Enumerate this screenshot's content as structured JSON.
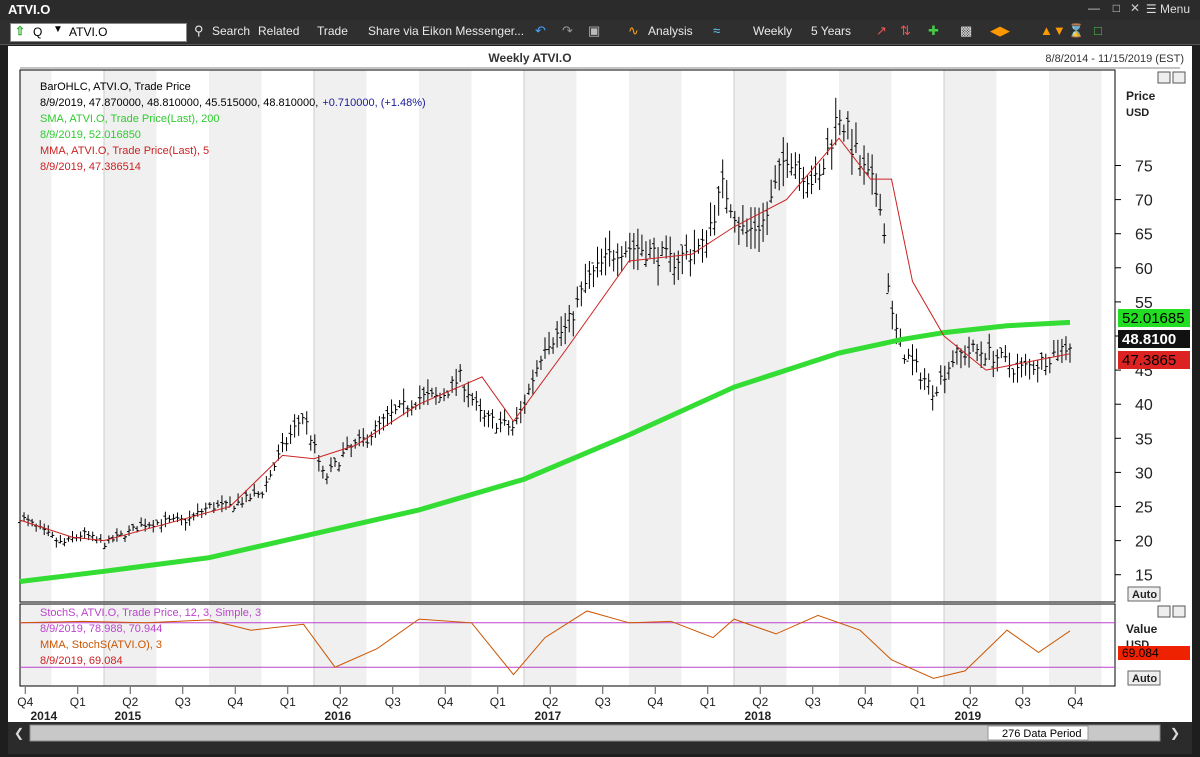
{
  "window": {
    "title": "ATVI.O",
    "menu_label": "Menu"
  },
  "toolbar": {
    "ric_value": "ATVI.O",
    "q_label": "Q",
    "search": "Search",
    "related": "Related",
    "trade": "Trade",
    "share": "Share via Eikon Messenger...",
    "analysis": "Analysis",
    "interval": "Weekly",
    "range": "5 Years"
  },
  "chart": {
    "header_title": "Weekly ATVI.O",
    "date_range": "8/8/2014 - 11/15/2019 (EST)",
    "legend": {
      "ohlc_name": "BarOHLC, ATVI.O, Trade Price",
      "ohlc_values": "8/9/2019, 47.870000, 48.810000, 45.515000, 48.810000,",
      "ohlc_change": "+0.710000, (+1.48%)",
      "sma_name": "SMA, ATVI.O, Trade Price(Last),  200",
      "sma_value": "8/9/2019, 52.016850",
      "mma_name": "MMA, ATVI.O, Trade Price(Last),  5",
      "mma_value": "8/9/2019, 47.386514"
    },
    "price_axis_title": "Price",
    "price_axis_unit": "USD",
    "auto_label": "Auto",
    "last_labels": {
      "sma": "52.01685",
      "close": "48.8100",
      "mma": "47.3865"
    },
    "stoch_legend": {
      "name": "StochS, ATVI.O, Trade Price,  12, 3, Simple, 3",
      "values": "8/9/2019, 78.988, 70.944",
      "mma_name": "MMA, StochS(ATVI.O),  3",
      "mma_value": "8/9/2019, 69.084"
    },
    "stoch_axis_title": "Value",
    "stoch_axis_unit": "USD",
    "stoch_last": "69.084",
    "data_period": "276 Data Period",
    "colors": {
      "sma": "#33dd33",
      "mma": "#cc2222",
      "stoch": "#cc5500",
      "stoch_band": "#bb44cc",
      "bars": "#000000"
    }
  },
  "chart_data": [
    {
      "type": "line",
      "title": "Weekly ATVI.O",
      "ylabel": "Price USD",
      "ylim": [
        11,
        89
      ],
      "x_ticks": [
        "Q4",
        "Q1",
        "Q2",
        "Q3",
        "Q4",
        "Q1",
        "Q2",
        "Q3",
        "Q4",
        "Q1",
        "Q2",
        "Q3",
        "Q4",
        "Q1",
        "Q2",
        "Q3",
        "Q4",
        "Q1",
        "Q2",
        "Q3",
        "Q4"
      ],
      "x_years": [
        "2014",
        "2015",
        "2016",
        "2017",
        "2018",
        "2019"
      ],
      "y_ticks": [
        15,
        20,
        25,
        30,
        35,
        40,
        45,
        50,
        55,
        60,
        65,
        70,
        75
      ],
      "series": [
        {
          "name": "BarOHLC, ATVI.O, Trade Price",
          "x": [
            2014.6,
            2014.8,
            2014.9,
            2015.0,
            2015.2,
            2015.4,
            2015.5,
            2015.6,
            2015.75,
            2015.85,
            2015.95,
            2016.05,
            2016.15,
            2016.25,
            2016.35,
            2016.5,
            2016.6,
            2016.7,
            2016.8,
            2016.95,
            2017.0,
            2017.1,
            2017.2,
            2017.3,
            2017.45,
            2017.55,
            2017.7,
            2017.85,
            2017.95,
            2018.05,
            2018.15,
            2018.25,
            2018.4,
            2018.5,
            2018.6,
            2018.7,
            2018.75,
            2018.8,
            2018.85,
            2018.9,
            2018.95,
            2019.05,
            2019.15,
            2019.25,
            2019.35,
            2019.45,
            2019.5,
            2019.6
          ],
          "close": [
            23.5,
            19.5,
            21,
            19.5,
            22.5,
            23,
            25,
            25,
            27,
            33.5,
            38.5,
            29,
            33,
            35,
            38,
            41,
            41,
            44,
            38,
            36.5,
            40,
            49,
            51,
            58,
            63,
            63,
            61,
            63,
            72,
            65,
            67,
            77,
            72,
            83,
            75,
            70,
            53,
            48,
            46,
            44,
            42,
            47,
            48,
            47,
            45,
            46,
            47,
            48.8
          ]
        },
        {
          "name": "SMA, ATVI.O, Trade Price(Last),  200",
          "x": [
            2014.6,
            2015.0,
            2015.5,
            2016.0,
            2016.5,
            2017.0,
            2017.5,
            2018.0,
            2018.5,
            2018.8,
            2019.0,
            2019.3,
            2019.6
          ],
          "values": [
            14,
            15.5,
            17.5,
            21,
            24.5,
            29,
            35.5,
            42.5,
            47.5,
            49.5,
            50.5,
            51.5,
            52.0
          ]
        },
        {
          "name": "MMA, ATVI.O, Trade Price(Last),  5",
          "x": [
            2014.6,
            2014.85,
            2015.0,
            2015.3,
            2015.6,
            2015.85,
            2016.0,
            2016.2,
            2016.5,
            2016.8,
            2016.95,
            2017.2,
            2017.5,
            2017.8,
            2018.0,
            2018.25,
            2018.5,
            2018.65,
            2018.75,
            2018.85,
            2019.0,
            2019.2,
            2019.6
          ],
          "values": [
            23,
            20.5,
            20,
            22.5,
            25,
            32.5,
            32,
            34,
            40,
            44,
            37.5,
            48,
            61,
            62,
            66,
            70,
            79,
            73,
            73,
            58,
            50,
            45,
            47.4
          ]
        }
      ]
    },
    {
      "type": "line",
      "title": "StochS, ATVI.O, Trade Price,  12, 3, Simple, 3",
      "ylabel": "Value USD",
      "ylim": [
        0,
        100
      ],
      "series": [
        {
          "name": "MMA, StochS(ATVI.O),  3",
          "x": [
            2014.6,
            2014.9,
            2015.2,
            2015.5,
            2015.7,
            2015.95,
            2016.1,
            2016.3,
            2016.5,
            2016.75,
            2016.95,
            2017.1,
            2017.3,
            2017.5,
            2017.7,
            2017.9,
            2018.0,
            2018.2,
            2018.4,
            2018.6,
            2018.75,
            2018.95,
            2019.1,
            2019.3,
            2019.45,
            2019.6
          ],
          "values": [
            80,
            82,
            80,
            84,
            70,
            78,
            20,
            45,
            85,
            80,
            10,
            60,
            96,
            80,
            82,
            60,
            85,
            65,
            90,
            70,
            30,
            5,
            15,
            70,
            40,
            69
          ]
        }
      ]
    }
  ]
}
